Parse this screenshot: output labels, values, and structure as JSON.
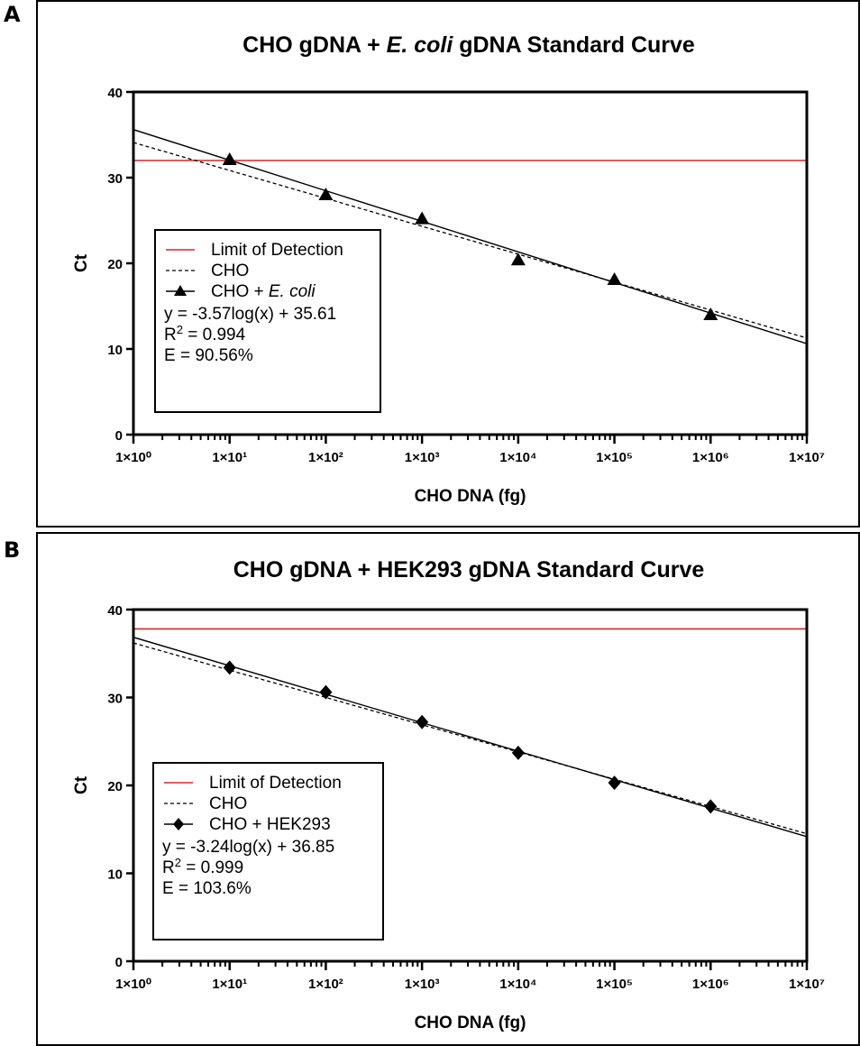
{
  "chart_data": [
    {
      "panel_label": "A",
      "type": "scatter",
      "title_pre": "CHO gDNA + ",
      "title_italic": "E. coli",
      "title_post": " gDNA Standard Curve",
      "xlabel": "CHO DNA (fg)",
      "ylabel": "Ct",
      "x_scale": "log10",
      "xlim": [
        1,
        10000000
      ],
      "ylim": [
        0,
        40
      ],
      "x_ticks": [
        "1×10⁰",
        "1×10¹",
        "1×10²",
        "1×10³",
        "1×10⁴",
        "1×10⁵",
        "1×10⁶",
        "1×10⁷"
      ],
      "y_ticks": [
        "0",
        "10",
        "20",
        "30",
        "40"
      ],
      "lod": 32,
      "points": {
        "marker": "triangle",
        "x": [
          10,
          100,
          1000,
          10000,
          100000,
          1000000
        ],
        "y": [
          32.1,
          28.0,
          25.2,
          20.4,
          18.1,
          14.0
        ]
      },
      "fit_solid": {
        "slope": -3.57,
        "intercept": 35.61
      },
      "fit_dashed": {
        "slope": -3.26,
        "intercept": 34.1
      },
      "legend": {
        "lod": "Limit of Detection",
        "cho": "CHO",
        "series_pre": "CHO + ",
        "series_italic": "E. coli",
        "equation": "y = -3.57log(x) + 35.61",
        "r2_prefix": "R",
        "r2_sup": "2",
        "r2_value": " = 0.994",
        "efficiency": "E = 90.56%"
      },
      "colors": {
        "lod": "#d62728",
        "line": "#000000"
      }
    },
    {
      "panel_label": "B",
      "type": "scatter",
      "title_pre": "CHO gDNA + HEK293 gDNA Standard Curve",
      "title_italic": "",
      "title_post": "",
      "xlabel": "CHO DNA (fg)",
      "ylabel": "Ct",
      "x_scale": "log10",
      "xlim": [
        1,
        10000000
      ],
      "ylim": [
        0,
        40
      ],
      "x_ticks": [
        "1×10⁰",
        "1×10¹",
        "1×10²",
        "1×10³",
        "1×10⁴",
        "1×10⁵",
        "1×10⁶",
        "1×10⁷"
      ],
      "y_ticks": [
        "0",
        "10",
        "20",
        "30",
        "40"
      ],
      "lod": 37.8,
      "points": {
        "marker": "diamond",
        "x": [
          10,
          100,
          1000,
          10000,
          100000,
          1000000
        ],
        "y": [
          33.4,
          30.6,
          27.2,
          23.7,
          20.3,
          17.6
        ]
      },
      "fit_solid": {
        "slope": -3.24,
        "intercept": 36.85
      },
      "fit_dashed": {
        "slope": -3.1,
        "intercept": 36.2
      },
      "legend": {
        "lod": "Limit of Detection",
        "cho": "CHO",
        "series_pre": "CHO + HEK293",
        "series_italic": "",
        "equation": "y = -3.24log(x) + 36.85",
        "r2_prefix": "R",
        "r2_sup": "2",
        "r2_value": " = 0.999",
        "efficiency": "E = 103.6%"
      },
      "colors": {
        "lod": "#d62728",
        "line": "#000000"
      }
    }
  ]
}
